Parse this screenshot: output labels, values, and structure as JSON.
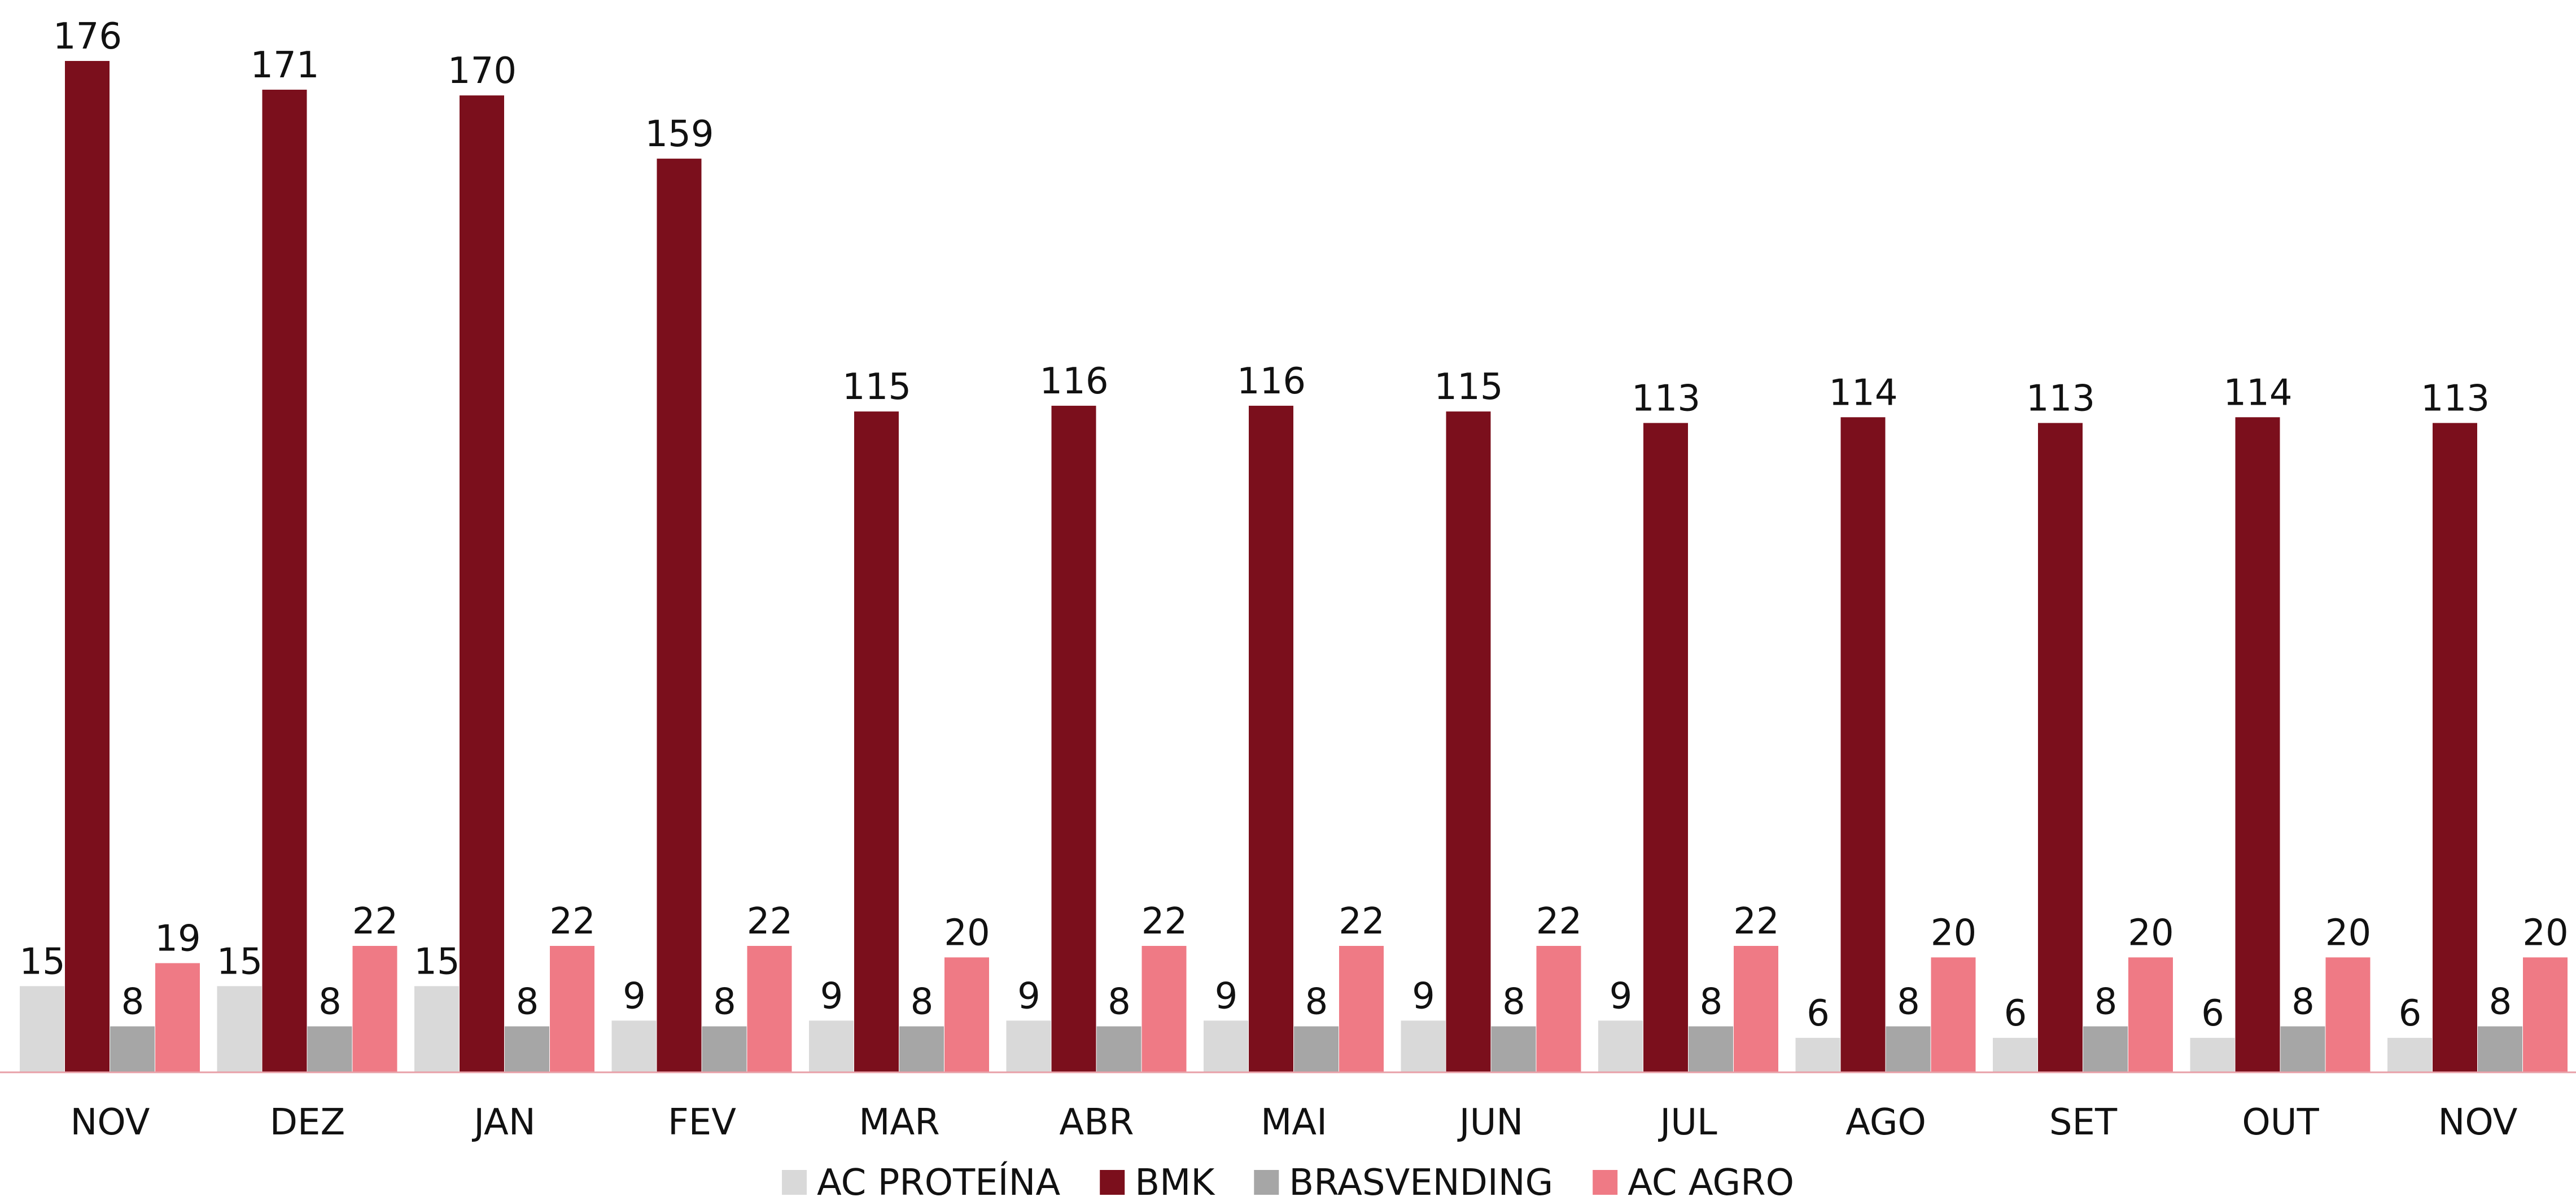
{
  "chart_data": {
    "type": "bar",
    "categories": [
      "NOV",
      "DEZ",
      "JAN",
      "FEV",
      "MAR",
      "ABR",
      "MAI",
      "JUN",
      "JUL",
      "AGO",
      "SET",
      "OUT",
      "NOV"
    ],
    "series": [
      {
        "name": "AC PROTEÍNA",
        "color": "#d9d9d9",
        "values": [
          15,
          15,
          15,
          9,
          9,
          9,
          9,
          9,
          9,
          6,
          6,
          6,
          6
        ]
      },
      {
        "name": "BMK",
        "color": "#7b0f1c",
        "values": [
          176,
          171,
          170,
          159,
          115,
          116,
          116,
          115,
          113,
          114,
          113,
          114,
          113
        ]
      },
      {
        "name": "BRASVENDING",
        "color": "#a6a6a6",
        "values": [
          8,
          8,
          8,
          8,
          8,
          8,
          8,
          8,
          8,
          8,
          8,
          8,
          8
        ]
      },
      {
        "name": "AC AGRO",
        "color": "#ef7a85",
        "values": [
          19,
          22,
          22,
          22,
          20,
          22,
          22,
          22,
          22,
          20,
          20,
          20,
          20
        ]
      }
    ],
    "legend": "bottom"
  }
}
